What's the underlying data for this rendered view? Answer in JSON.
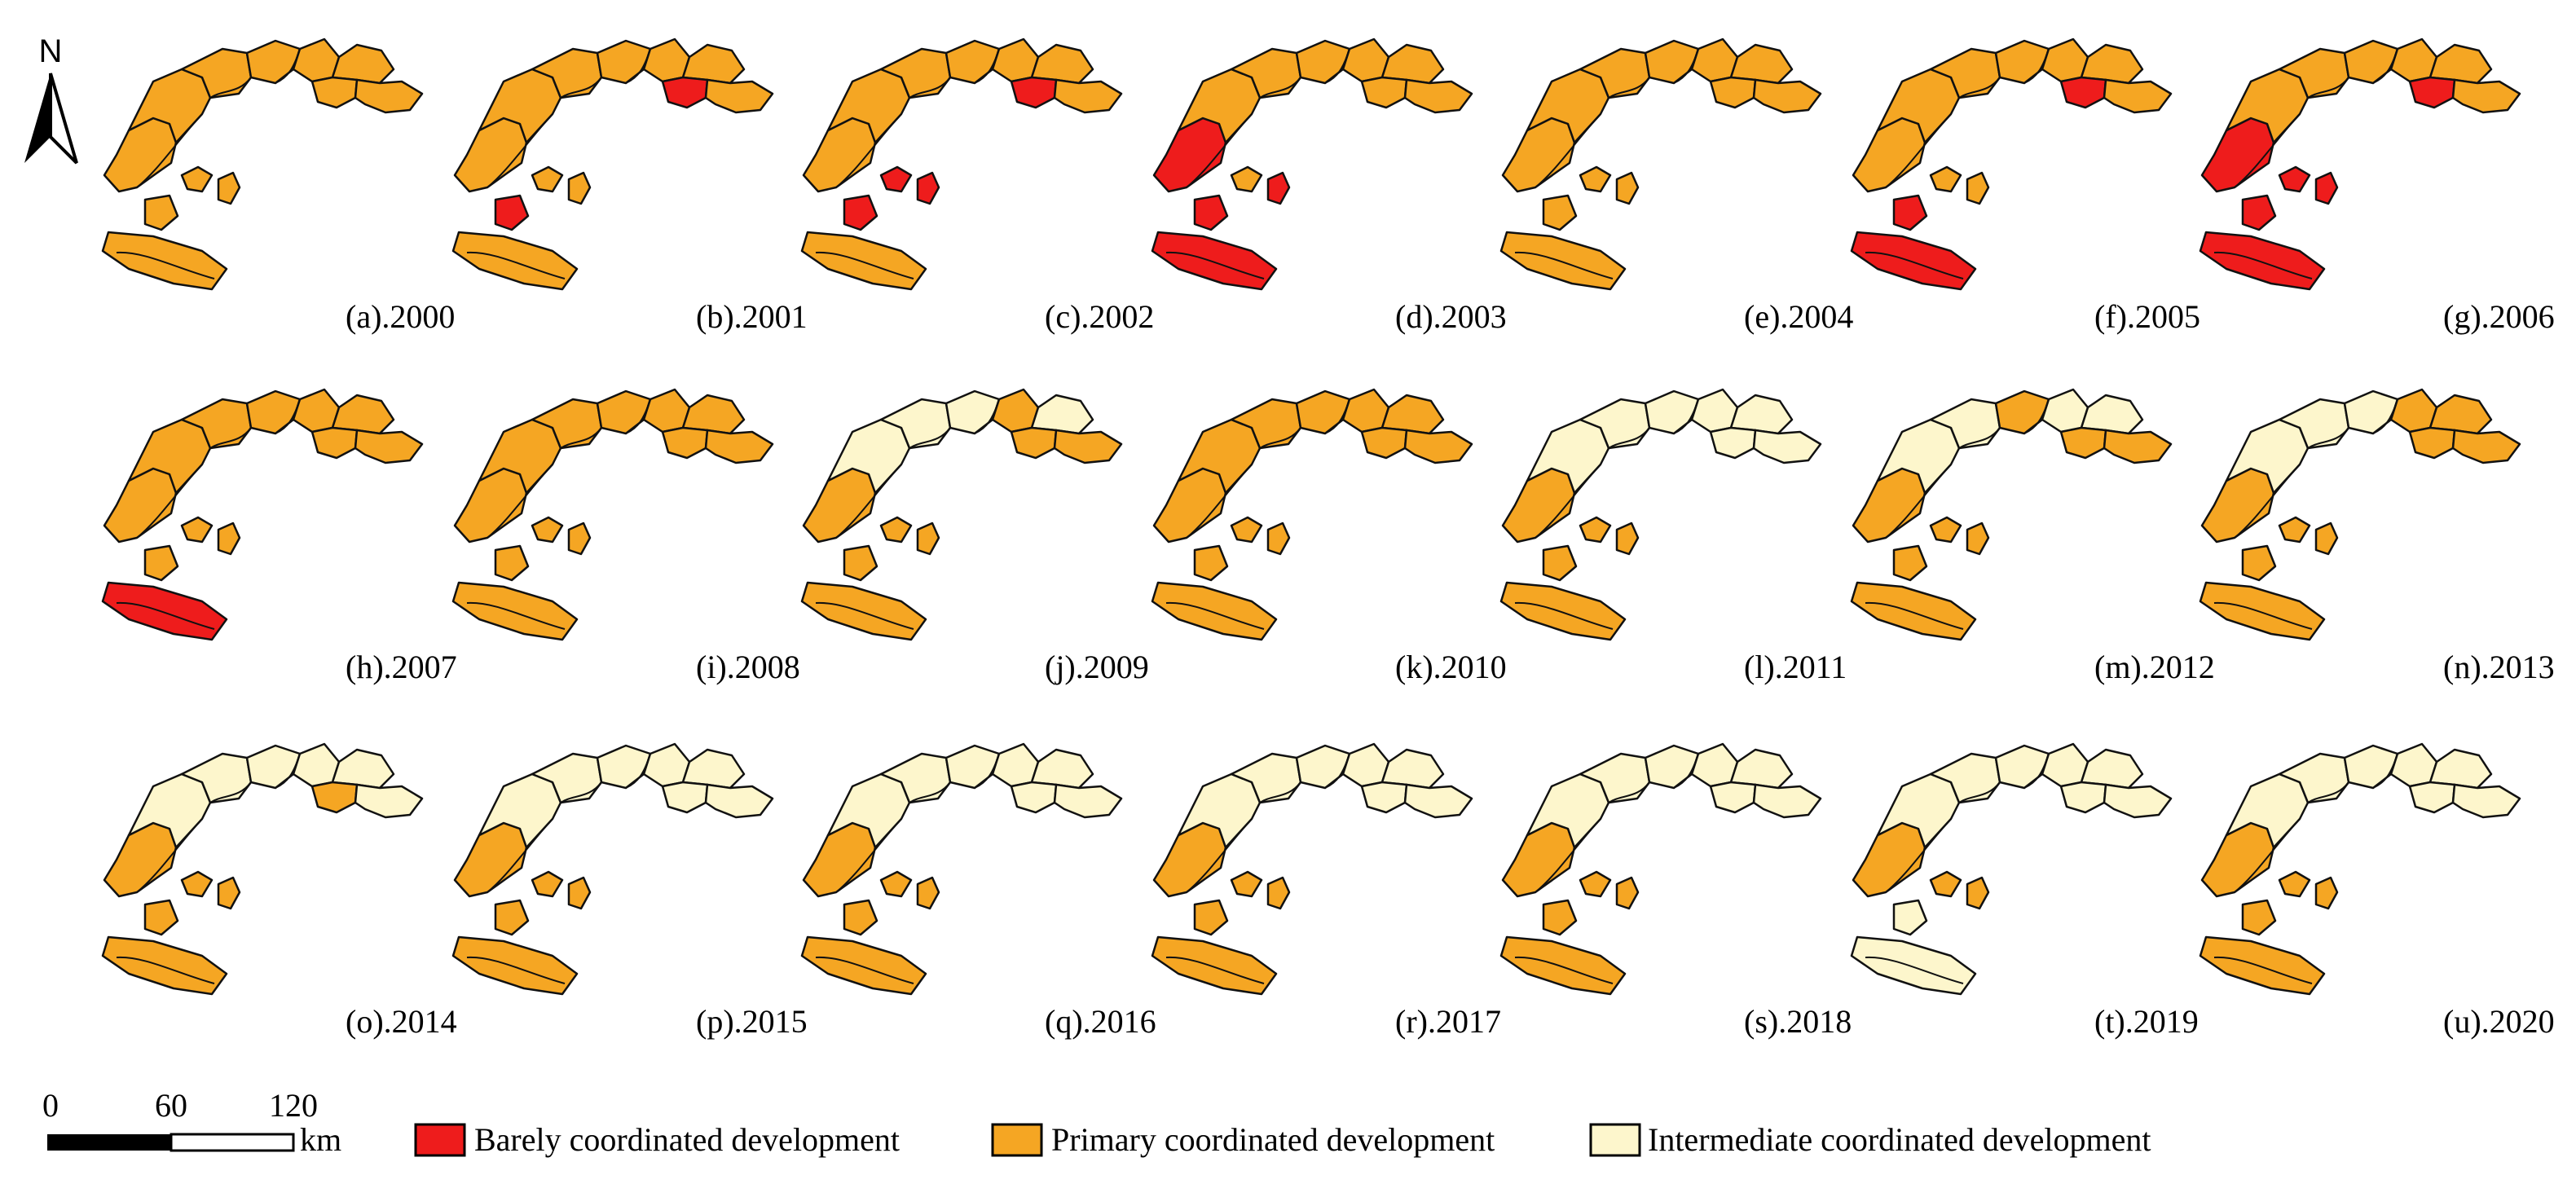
{
  "north_arrow": {
    "letter": "N"
  },
  "legend": {
    "items": [
      {
        "key": "barely",
        "label": "Barely coordinated development",
        "color": "#ee1c1c"
      },
      {
        "key": "primary",
        "label": "Primary coordinated development",
        "color": "#f5a623"
      },
      {
        "key": "intermediate",
        "label": "Intermediate coordinated development",
        "color": "#fdf6cc"
      }
    ]
  },
  "scale_bar": {
    "ticks": [
      "0",
      "60",
      "120"
    ],
    "unit": "km"
  },
  "chart_data": {
    "type": "choropleth-map-series",
    "regions_per_map": 12,
    "panels": [
      {
        "label": "(a).2000",
        "classes": [
          "primary",
          "primary",
          "primary",
          "primary",
          "primary",
          "primary",
          "primary",
          "primary",
          "primary",
          "primary",
          "primary",
          "primary"
        ]
      },
      {
        "label": "(b).2001",
        "classes": [
          "primary",
          "primary",
          "primary",
          "primary",
          "primary",
          "primary",
          "barely",
          "primary",
          "primary",
          "primary",
          "barely",
          "primary"
        ]
      },
      {
        "label": "(c).2002",
        "classes": [
          "primary",
          "primary",
          "primary",
          "primary",
          "primary",
          "primary",
          "barely",
          "primary",
          "barely",
          "barely",
          "barely",
          "primary"
        ]
      },
      {
        "label": "(d).2003",
        "classes": [
          "barely",
          "primary",
          "primary",
          "primary",
          "primary",
          "primary",
          "primary",
          "primary",
          "primary",
          "barely",
          "barely",
          "barely"
        ]
      },
      {
        "label": "(e).2004",
        "classes": [
          "primary",
          "primary",
          "primary",
          "primary",
          "primary",
          "primary",
          "primary",
          "primary",
          "primary",
          "primary",
          "primary",
          "primary"
        ]
      },
      {
        "label": "(f).2005",
        "classes": [
          "primary",
          "primary",
          "primary",
          "primary",
          "primary",
          "primary",
          "barely",
          "primary",
          "primary",
          "primary",
          "barely",
          "barely"
        ]
      },
      {
        "label": "(g).2006",
        "classes": [
          "barely",
          "primary",
          "primary",
          "primary",
          "primary",
          "primary",
          "barely",
          "primary",
          "barely",
          "barely",
          "barely",
          "barely"
        ]
      },
      {
        "label": "(h).2007",
        "classes": [
          "primary",
          "primary",
          "primary",
          "primary",
          "primary",
          "primary",
          "primary",
          "primary",
          "primary",
          "primary",
          "primary",
          "barely"
        ]
      },
      {
        "label": "(i).2008",
        "classes": [
          "primary",
          "primary",
          "primary",
          "primary",
          "primary",
          "primary",
          "primary",
          "primary",
          "primary",
          "primary",
          "primary",
          "primary"
        ]
      },
      {
        "label": "(j).2009",
        "classes": [
          "primary",
          "intermediate",
          "intermediate",
          "intermediate",
          "primary",
          "intermediate",
          "primary",
          "primary",
          "primary",
          "primary",
          "primary",
          "primary"
        ]
      },
      {
        "label": "(k).2010",
        "classes": [
          "primary",
          "primary",
          "primary",
          "primary",
          "primary",
          "primary",
          "primary",
          "primary",
          "primary",
          "primary",
          "primary",
          "primary"
        ]
      },
      {
        "label": "(l).2011",
        "classes": [
          "primary",
          "intermediate",
          "intermediate",
          "intermediate",
          "intermediate",
          "intermediate",
          "intermediate",
          "intermediate",
          "primary",
          "primary",
          "primary",
          "primary"
        ]
      },
      {
        "label": "(m).2012",
        "classes": [
          "primary",
          "intermediate",
          "intermediate",
          "primary",
          "intermediate",
          "intermediate",
          "primary",
          "primary",
          "primary",
          "primary",
          "primary",
          "primary"
        ]
      },
      {
        "label": "(n).2013",
        "classes": [
          "primary",
          "intermediate",
          "intermediate",
          "intermediate",
          "primary",
          "primary",
          "primary",
          "primary",
          "primary",
          "primary",
          "primary",
          "primary"
        ]
      },
      {
        "label": "(o).2014",
        "classes": [
          "primary",
          "intermediate",
          "intermediate",
          "intermediate",
          "intermediate",
          "intermediate",
          "primary",
          "intermediate",
          "primary",
          "primary",
          "primary",
          "primary"
        ]
      },
      {
        "label": "(p).2015",
        "classes": [
          "primary",
          "intermediate",
          "intermediate",
          "intermediate",
          "intermediate",
          "intermediate",
          "intermediate",
          "intermediate",
          "primary",
          "primary",
          "primary",
          "primary"
        ]
      },
      {
        "label": "(q).2016",
        "classes": [
          "primary",
          "intermediate",
          "intermediate",
          "intermediate",
          "intermediate",
          "intermediate",
          "intermediate",
          "intermediate",
          "primary",
          "primary",
          "primary",
          "primary"
        ]
      },
      {
        "label": "(r).2017",
        "classes": [
          "primary",
          "intermediate",
          "intermediate",
          "intermediate",
          "intermediate",
          "intermediate",
          "intermediate",
          "intermediate",
          "primary",
          "primary",
          "primary",
          "primary"
        ]
      },
      {
        "label": "(s).2018",
        "classes": [
          "primary",
          "intermediate",
          "intermediate",
          "intermediate",
          "intermediate",
          "intermediate",
          "intermediate",
          "intermediate",
          "primary",
          "primary",
          "primary",
          "primary"
        ]
      },
      {
        "label": "(t).2019",
        "classes": [
          "primary",
          "intermediate",
          "intermediate",
          "intermediate",
          "intermediate",
          "intermediate",
          "intermediate",
          "intermediate",
          "primary",
          "primary",
          "intermediate",
          "intermediate"
        ]
      },
      {
        "label": "(u).2020",
        "classes": [
          "primary",
          "intermediate",
          "intermediate",
          "intermediate",
          "intermediate",
          "intermediate",
          "intermediate",
          "intermediate",
          "primary",
          "primary",
          "primary",
          "primary"
        ]
      }
    ]
  }
}
